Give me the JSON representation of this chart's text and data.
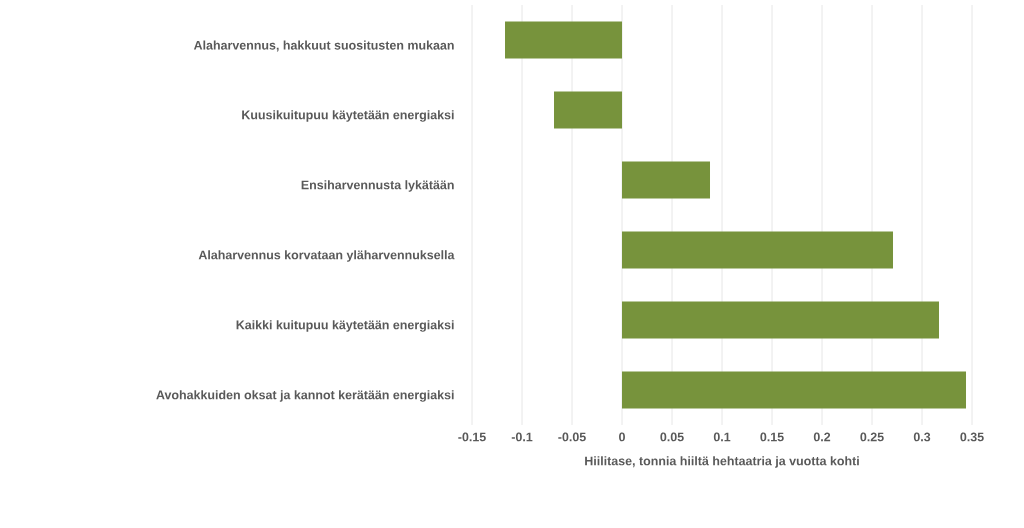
{
  "chart_data": {
    "type": "bar",
    "orientation": "horizontal",
    "categories": [
      "Alaharvennus, hakkuut suositusten mukaan",
      "Kuusikuitupuu käytetään energiaksi",
      "Ensiharvennusta lykätään",
      "Alaharvennus korvataan yläharvennuksella",
      "Kaikki kuitupuu käytetään energiaksi",
      "Avohakkuiden oksat ja kannot kerätään energiaksi"
    ],
    "values": [
      -0.117,
      -0.068,
      0.088,
      0.271,
      0.317,
      0.344
    ],
    "color": "#77933c",
    "xlabel": "Hiilitase, tonnia hiiltä hehtaatria ja vuotta kohti",
    "xlim": [
      -0.15,
      0.35
    ],
    "xticks": [
      -0.15,
      -0.1,
      -0.05,
      0,
      0.05,
      0.1,
      0.15,
      0.2,
      0.25,
      0.3,
      0.35
    ],
    "grid": "x"
  }
}
